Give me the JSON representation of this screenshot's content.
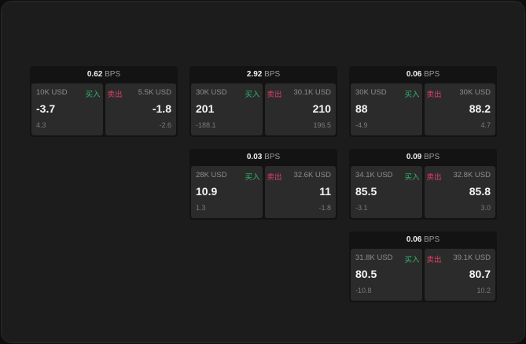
{
  "cards": [
    {
      "bps": "0.62",
      "unit": "BPS",
      "buy": {
        "size": "10K USD",
        "label": "买入",
        "price": "-3.7",
        "change": "4.3"
      },
      "sell": {
        "size": "5.5K USD",
        "label": "卖出",
        "price": "-1.8",
        "change": "-2.6"
      }
    },
    {
      "bps": "2.92",
      "unit": "BPS",
      "buy": {
        "size": "30K USD",
        "label": "买入",
        "price": "201",
        "change": "-188.1"
      },
      "sell": {
        "size": "30.1K USD",
        "label": "卖出",
        "price": "210",
        "change": "196.5"
      }
    },
    {
      "bps": "0.06",
      "unit": "BPS",
      "buy": {
        "size": "30K USD",
        "label": "买入",
        "price": "88",
        "change": "-4.9"
      },
      "sell": {
        "size": "30K USD",
        "label": "卖出",
        "price": "88.2",
        "change": "4.7"
      }
    },
    {
      "bps": "0.03",
      "unit": "BPS",
      "buy": {
        "size": "28K USD",
        "label": "买入",
        "price": "10.9",
        "change": "1.3"
      },
      "sell": {
        "size": "32.6K USD",
        "label": "卖出",
        "price": "11",
        "change": "-1.8"
      }
    },
    {
      "bps": "0.09",
      "unit": "BPS",
      "buy": {
        "size": "34.1K USD",
        "label": "买入",
        "price": "85.5",
        "change": "-3.1"
      },
      "sell": {
        "size": "32.8K USD",
        "label": "卖出",
        "price": "85.8",
        "change": "3.0"
      }
    },
    {
      "bps": "0.06",
      "unit": "BPS",
      "buy": {
        "size": "31.8K USD",
        "label": "买入",
        "price": "80.5",
        "change": "-10.8"
      },
      "sell": {
        "size": "39.1K USD",
        "label": "卖出",
        "price": "80.7",
        "change": "10.2"
      }
    }
  ],
  "colors": {
    "buy": "#2fb86a",
    "sell": "#e0406a"
  }
}
